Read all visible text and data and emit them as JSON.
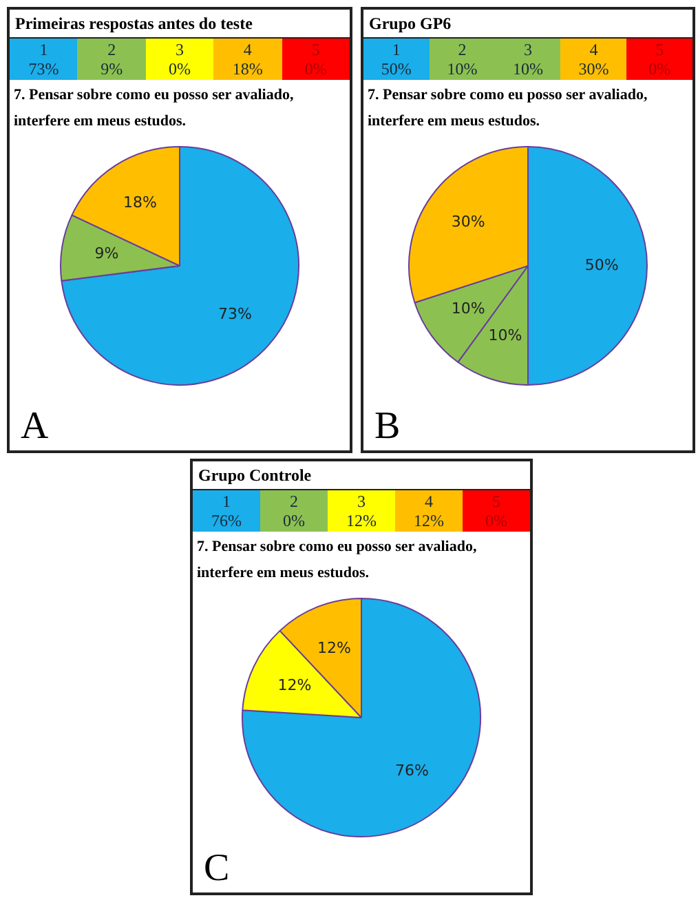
{
  "chart_data": [
    {
      "type": "pie",
      "title": "Primeiras respostas antes do teste",
      "subtitle": "7. Pensar sobre como eu posso ser avaliado, interfere em meus estudos.",
      "categories": [
        "1",
        "2",
        "3",
        "4",
        "5"
      ],
      "values": [
        73,
        9,
        0,
        18,
        0
      ],
      "value_labels": [
        "73%",
        "9%",
        "0%",
        "18%",
        "0%"
      ],
      "colors": [
        "#1aaeea",
        "#8cc152",
        "#ffff00",
        "#ffbf00",
        "#ff0000"
      ],
      "legend": "top",
      "annotations": [
        "A"
      ]
    },
    {
      "type": "pie",
      "title": "Grupo GP6",
      "subtitle": "7. Pensar sobre como eu posso ser avaliado, interfere em meus estudos.",
      "categories": [
        "1",
        "2",
        "3",
        "4",
        "5"
      ],
      "values": [
        50,
        10,
        10,
        30,
        0
      ],
      "value_labels": [
        "50%",
        "10%",
        "10%",
        "30%",
        "0%"
      ],
      "colors": [
        "#1aaeea",
        "#8cc152",
        "#8cc152",
        "#ffbf00",
        "#ff0000"
      ],
      "legend": "top",
      "annotations": [
        "B"
      ]
    },
    {
      "type": "pie",
      "title": "Grupo Controle",
      "subtitle": "7. Pensar sobre como eu posso ser avaliado, interfere em meus estudos.",
      "categories": [
        "1",
        "2",
        "3",
        "4",
        "5"
      ],
      "values": [
        76,
        0,
        12,
        12,
        0
      ],
      "value_labels": [
        "76%",
        "0%",
        "12%",
        "12%",
        "0%"
      ],
      "colors": [
        "#1aaeea",
        "#8cc152",
        "#ffff00",
        "#ffbf00",
        "#ff0000"
      ],
      "legend": "top",
      "annotations": [
        "C"
      ]
    }
  ]
}
